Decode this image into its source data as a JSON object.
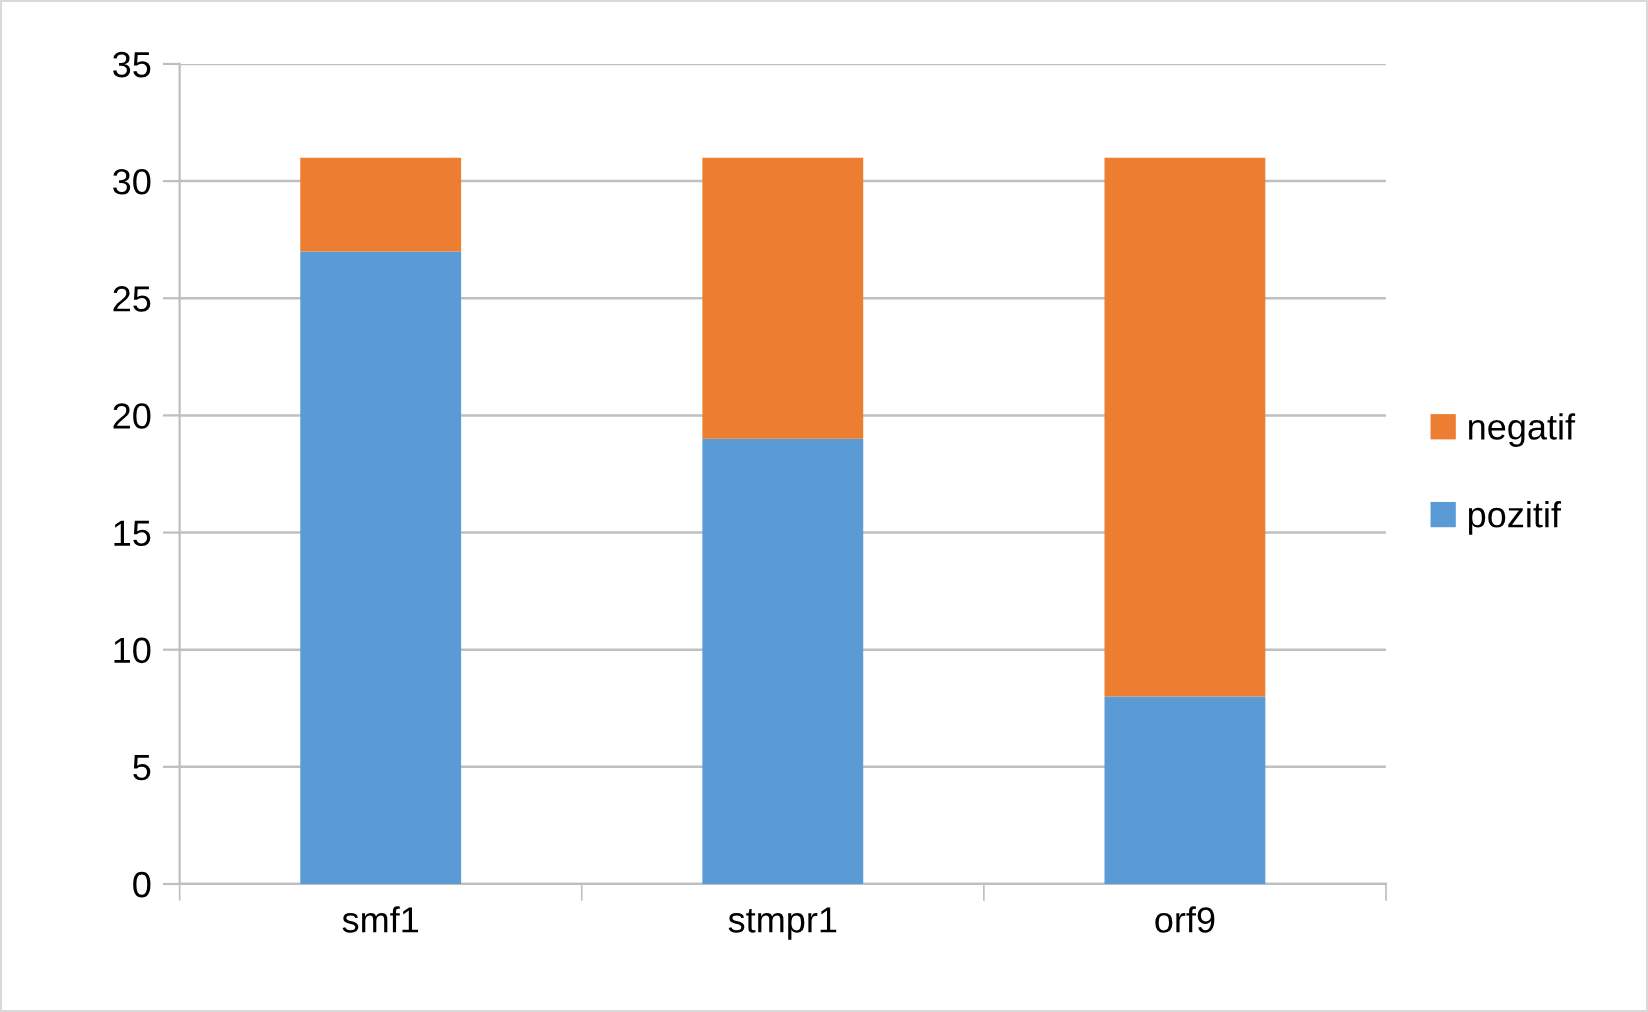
{
  "chart_data": {
    "type": "bar",
    "stacked": true,
    "categories": [
      "smf1",
      "stmpr1",
      "orf9"
    ],
    "series": [
      {
        "name": "pozitif",
        "color": "#5b9bd5",
        "values": [
          27,
          19,
          8
        ]
      },
      {
        "name": "negatif",
        "color": "#ed7d31",
        "values": [
          4,
          12,
          23
        ]
      }
    ],
    "ylim": [
      0,
      35
    ],
    "yticks": [
      0,
      5,
      10,
      15,
      20,
      25,
      30,
      35
    ],
    "grid": "y",
    "legend": "right"
  }
}
